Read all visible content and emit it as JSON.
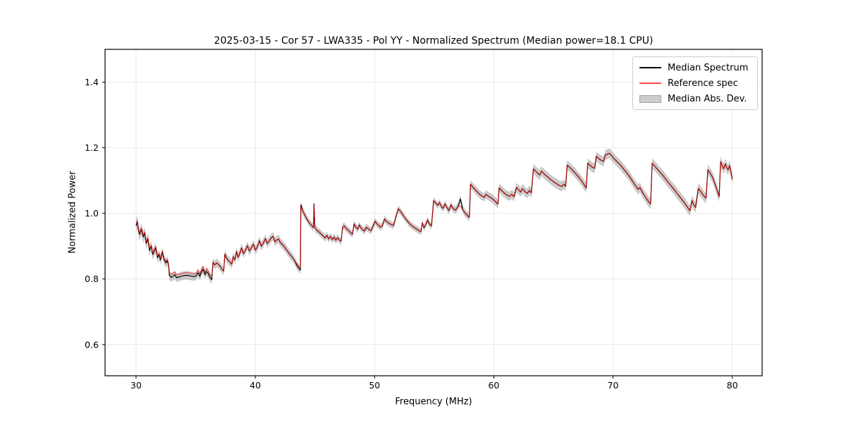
{
  "figure": {
    "background_color": "#ffffff",
    "title": "2025-03-15 - Cor 57 - LWA335 - Pol YY - Normalized Spectrum (Median power=18.1 CPU)"
  },
  "chart_data": {
    "type": "line",
    "title": "2025-03-15 - Cor 57 - LWA335 - Pol YY - Normalized Spectrum (Median power=18.1 CPU)",
    "xlabel": "Frequency (MHz)",
    "ylabel": "Normalized Power",
    "xlim": [
      27.4,
      82.5
    ],
    "ylim": [
      0.505,
      1.5
    ],
    "xticks": [
      30,
      40,
      50,
      60,
      70,
      80
    ],
    "yticks": [
      0.6,
      0.8,
      1.0,
      1.2,
      1.4
    ],
    "grid": true,
    "grid_color": "#e8e8e8",
    "spine_color": "#000000",
    "legend": {
      "position": "upper right",
      "entries": [
        {
          "label": "Median Spectrum",
          "type": "line",
          "color": "#000000"
        },
        {
          "label": "Reference spec",
          "type": "line",
          "color": "rgba(255,0,0,0.70)"
        },
        {
          "label": "Median Abs. Dev.",
          "type": "patch",
          "fill": "#cccccc",
          "edge": "#a5a5a5"
        }
      ]
    },
    "series_meta": [
      {
        "name": "Median Spectrum",
        "color": "#000000",
        "width": 1.2
      },
      {
        "name": "Reference spec",
        "color": "rgba(255,0,0,0.70)",
        "width": 1.1
      }
    ],
    "points_format": [
      "frequency_mhz",
      "median_spectrum",
      "reference_spec"
    ],
    "points": [
      [
        30.0,
        0.962,
        0.966
      ],
      [
        30.1,
        0.974,
        0.978
      ],
      [
        30.22,
        0.946,
        0.95
      ],
      [
        30.3,
        0.936,
        0.94
      ],
      [
        30.45,
        0.952,
        0.956
      ],
      [
        30.6,
        0.928,
        0.932
      ],
      [
        30.72,
        0.94,
        0.944
      ],
      [
        30.85,
        0.909,
        0.913
      ],
      [
        31.0,
        0.922,
        0.926
      ],
      [
        31.12,
        0.887,
        0.891
      ],
      [
        31.27,
        0.9,
        0.904
      ],
      [
        31.4,
        0.875,
        0.879
      ],
      [
        31.5,
        0.883,
        0.887
      ],
      [
        31.65,
        0.895,
        0.899
      ],
      [
        31.8,
        0.865,
        0.869
      ],
      [
        31.93,
        0.874,
        0.878
      ],
      [
        32.05,
        0.858,
        0.862
      ],
      [
        32.2,
        0.882,
        0.886
      ],
      [
        32.35,
        0.859,
        0.863
      ],
      [
        32.5,
        0.849,
        0.853
      ],
      [
        32.62,
        0.856,
        0.86
      ],
      [
        32.72,
        0.844,
        0.848
      ],
      [
        32.8,
        0.81,
        0.818
      ],
      [
        32.95,
        0.805,
        0.813
      ],
      [
        33.1,
        0.808,
        0.816
      ],
      [
        33.25,
        0.813,
        0.821
      ],
      [
        33.4,
        0.804,
        0.812
      ],
      [
        33.6,
        0.806,
        0.814
      ],
      [
        33.85,
        0.809,
        0.817
      ],
      [
        34.1,
        0.811,
        0.819
      ],
      [
        34.35,
        0.811,
        0.819
      ],
      [
        34.6,
        0.809,
        0.817
      ],
      [
        34.85,
        0.807,
        0.815
      ],
      [
        35.05,
        0.81,
        0.818
      ],
      [
        35.2,
        0.819,
        0.827
      ],
      [
        35.35,
        0.808,
        0.816
      ],
      [
        35.5,
        0.823,
        0.831
      ],
      [
        35.62,
        0.83,
        0.838
      ],
      [
        35.78,
        0.813,
        0.821
      ],
      [
        35.9,
        0.823,
        0.831
      ],
      [
        36.05,
        0.817,
        0.825
      ],
      [
        36.2,
        0.805,
        0.813
      ],
      [
        36.35,
        0.798,
        0.806
      ],
      [
        36.45,
        0.851,
        0.851
      ],
      [
        36.6,
        0.843,
        0.843
      ],
      [
        36.75,
        0.849,
        0.849
      ],
      [
        36.9,
        0.845,
        0.845
      ],
      [
        37.05,
        0.839,
        0.839
      ],
      [
        37.2,
        0.83,
        0.83
      ],
      [
        37.35,
        0.824,
        0.824
      ],
      [
        37.45,
        0.876,
        0.876
      ],
      [
        37.6,
        0.863,
        0.863
      ],
      [
        37.75,
        0.856,
        0.856
      ],
      [
        37.9,
        0.851,
        0.851
      ],
      [
        38.03,
        0.845,
        0.845
      ],
      [
        38.15,
        0.868,
        0.868
      ],
      [
        38.3,
        0.858,
        0.858
      ],
      [
        38.42,
        0.884,
        0.884
      ],
      [
        38.55,
        0.866,
        0.866
      ],
      [
        38.7,
        0.878,
        0.878
      ],
      [
        38.85,
        0.895,
        0.895
      ],
      [
        39.0,
        0.877,
        0.877
      ],
      [
        39.15,
        0.886,
        0.886
      ],
      [
        39.35,
        0.902,
        0.902
      ],
      [
        39.5,
        0.885,
        0.885
      ],
      [
        39.65,
        0.894,
        0.894
      ],
      [
        39.85,
        0.906,
        0.906
      ],
      [
        40.0,
        0.888,
        0.888
      ],
      [
        40.15,
        0.896,
        0.896
      ],
      [
        40.35,
        0.917,
        0.917
      ],
      [
        40.5,
        0.9,
        0.9
      ],
      [
        40.65,
        0.908,
        0.908
      ],
      [
        40.85,
        0.923,
        0.923
      ],
      [
        41.0,
        0.908,
        0.908
      ],
      [
        41.15,
        0.915,
        0.915
      ],
      [
        41.35,
        0.926,
        0.926
      ],
      [
        41.5,
        0.93,
        0.93
      ],
      [
        41.65,
        0.913,
        0.913
      ],
      [
        41.8,
        0.919,
        0.919
      ],
      [
        41.95,
        0.922,
        0.922
      ],
      [
        42.1,
        0.911,
        0.911
      ],
      [
        42.3,
        0.904,
        0.904
      ],
      [
        42.5,
        0.895,
        0.895
      ],
      [
        42.7,
        0.885,
        0.885
      ],
      [
        42.9,
        0.875,
        0.875
      ],
      [
        43.1,
        0.866,
        0.866
      ],
      [
        43.3,
        0.856,
        0.856
      ],
      [
        43.5,
        0.84,
        0.846
      ],
      [
        43.65,
        0.833,
        0.839
      ],
      [
        43.78,
        0.827,
        0.833
      ],
      [
        43.82,
        1.026,
        1.021
      ],
      [
        44.0,
        1.006,
        1.006
      ],
      [
        44.2,
        0.991,
        0.991
      ],
      [
        44.4,
        0.978,
        0.978
      ],
      [
        44.6,
        0.968,
        0.968
      ],
      [
        44.8,
        0.96,
        0.96
      ],
      [
        44.88,
        0.956,
        0.956
      ],
      [
        44.92,
        1.029,
        1.024
      ],
      [
        45.0,
        0.955,
        0.955
      ],
      [
        45.15,
        0.949,
        0.949
      ],
      [
        45.3,
        0.945,
        0.945
      ],
      [
        45.5,
        0.938,
        0.938
      ],
      [
        45.7,
        0.931,
        0.931
      ],
      [
        45.85,
        0.925,
        0.925
      ],
      [
        46.0,
        0.933,
        0.933
      ],
      [
        46.15,
        0.922,
        0.922
      ],
      [
        46.3,
        0.93,
        0.93
      ],
      [
        46.45,
        0.92,
        0.92
      ],
      [
        46.6,
        0.928,
        0.928
      ],
      [
        46.75,
        0.918,
        0.918
      ],
      [
        46.9,
        0.926,
        0.926
      ],
      [
        47.05,
        0.919,
        0.919
      ],
      [
        47.2,
        0.915,
        0.915
      ],
      [
        47.32,
        0.958,
        0.958
      ],
      [
        47.45,
        0.962,
        0.962
      ],
      [
        47.6,
        0.955,
        0.955
      ],
      [
        47.8,
        0.948,
        0.948
      ],
      [
        48.0,
        0.941,
        0.941
      ],
      [
        48.15,
        0.936,
        0.936
      ],
      [
        48.28,
        0.968,
        0.968
      ],
      [
        48.45,
        0.957,
        0.957
      ],
      [
        48.6,
        0.952,
        0.952
      ],
      [
        48.72,
        0.965,
        0.965
      ],
      [
        48.85,
        0.956,
        0.956
      ],
      [
        49.0,
        0.951,
        0.951
      ],
      [
        49.15,
        0.946,
        0.946
      ],
      [
        49.3,
        0.958,
        0.958
      ],
      [
        49.5,
        0.952,
        0.952
      ],
      [
        49.7,
        0.947,
        0.947
      ],
      [
        49.9,
        0.963,
        0.963
      ],
      [
        50.05,
        0.976,
        0.976
      ],
      [
        50.2,
        0.968,
        0.968
      ],
      [
        50.35,
        0.963,
        0.963
      ],
      [
        50.5,
        0.958,
        0.958
      ],
      [
        50.65,
        0.962,
        0.962
      ],
      [
        50.85,
        0.983,
        0.983
      ],
      [
        51.0,
        0.975,
        0.975
      ],
      [
        51.2,
        0.97,
        0.97
      ],
      [
        51.4,
        0.966,
        0.966
      ],
      [
        51.6,
        0.963,
        0.963
      ],
      [
        51.8,
        0.991,
        0.991
      ],
      [
        52.0,
        1.014,
        1.014
      ],
      [
        52.2,
        1.005,
        1.005
      ],
      [
        52.45,
        0.991,
        0.991
      ],
      [
        52.7,
        0.979,
        0.979
      ],
      [
        52.95,
        0.968,
        0.968
      ],
      [
        53.2,
        0.96,
        0.96
      ],
      [
        53.5,
        0.953,
        0.953
      ],
      [
        53.75,
        0.947,
        0.947
      ],
      [
        53.9,
        0.944,
        0.944
      ],
      [
        54.0,
        0.971,
        0.971
      ],
      [
        54.15,
        0.956,
        0.956
      ],
      [
        54.3,
        0.966,
        0.966
      ],
      [
        54.45,
        0.98,
        0.98
      ],
      [
        54.6,
        0.967,
        0.967
      ],
      [
        54.78,
        0.962,
        0.962
      ],
      [
        54.95,
        1.039,
        1.039
      ],
      [
        55.15,
        1.031,
        1.031
      ],
      [
        55.3,
        1.024,
        1.024
      ],
      [
        55.45,
        1.033,
        1.033
      ],
      [
        55.6,
        1.021,
        1.021
      ],
      [
        55.75,
        1.015,
        1.015
      ],
      [
        55.9,
        1.029,
        1.029
      ],
      [
        56.1,
        1.016,
        1.016
      ],
      [
        56.25,
        1.008,
        1.008
      ],
      [
        56.4,
        1.026,
        1.026
      ],
      [
        56.6,
        1.014,
        1.014
      ],
      [
        56.8,
        1.01,
        1.01
      ],
      [
        57.0,
        1.021,
        1.021
      ],
      [
        57.2,
        1.044,
        1.022
      ],
      [
        57.4,
        1.011,
        1.011
      ],
      [
        57.6,
        1.001,
        1.001
      ],
      [
        57.8,
        0.993,
        0.993
      ],
      [
        57.95,
        0.988,
        0.988
      ],
      [
        58.05,
        1.089,
        1.089
      ],
      [
        58.25,
        1.08,
        1.08
      ],
      [
        58.45,
        1.072,
        1.072
      ],
      [
        58.65,
        1.064,
        1.064
      ],
      [
        58.85,
        1.057,
        1.057
      ],
      [
        59.05,
        1.052,
        1.052
      ],
      [
        59.2,
        1.049,
        1.049
      ],
      [
        59.35,
        1.058,
        1.058
      ],
      [
        59.55,
        1.052,
        1.052
      ],
      [
        59.8,
        1.047,
        1.047
      ],
      [
        60.0,
        1.041,
        1.041
      ],
      [
        60.2,
        1.034,
        1.034
      ],
      [
        60.35,
        1.028,
        1.028
      ],
      [
        60.45,
        1.078,
        1.078
      ],
      [
        60.65,
        1.07,
        1.07
      ],
      [
        60.85,
        1.063,
        1.063
      ],
      [
        61.05,
        1.057,
        1.057
      ],
      [
        61.3,
        1.052,
        1.052
      ],
      [
        61.5,
        1.058,
        1.058
      ],
      [
        61.7,
        1.051,
        1.051
      ],
      [
        61.9,
        1.079,
        1.079
      ],
      [
        62.1,
        1.071,
        1.071
      ],
      [
        62.25,
        1.065,
        1.065
      ],
      [
        62.4,
        1.075,
        1.075
      ],
      [
        62.6,
        1.067,
        1.067
      ],
      [
        62.8,
        1.061,
        1.061
      ],
      [
        63.0,
        1.07,
        1.07
      ],
      [
        63.15,
        1.062,
        1.062
      ],
      [
        63.32,
        1.136,
        1.136
      ],
      [
        63.5,
        1.129,
        1.129
      ],
      [
        63.7,
        1.122,
        1.122
      ],
      [
        63.85,
        1.117,
        1.117
      ],
      [
        64.0,
        1.129,
        1.129
      ],
      [
        64.2,
        1.121,
        1.121
      ],
      [
        64.45,
        1.113,
        1.113
      ],
      [
        64.7,
        1.105,
        1.105
      ],
      [
        64.95,
        1.098,
        1.098
      ],
      [
        65.2,
        1.092,
        1.092
      ],
      [
        65.45,
        1.086,
        1.086
      ],
      [
        65.7,
        1.082,
        1.082
      ],
      [
        65.88,
        1.089,
        1.089
      ],
      [
        66.03,
        1.082,
        1.082
      ],
      [
        66.15,
        1.147,
        1.147
      ],
      [
        66.4,
        1.139,
        1.139
      ],
      [
        66.65,
        1.13,
        1.13
      ],
      [
        66.9,
        1.12,
        1.12
      ],
      [
        67.15,
        1.109,
        1.109
      ],
      [
        67.4,
        1.097,
        1.097
      ],
      [
        67.6,
        1.086,
        1.086
      ],
      [
        67.75,
        1.077,
        1.077
      ],
      [
        67.88,
        1.153,
        1.153
      ],
      [
        68.05,
        1.147,
        1.147
      ],
      [
        68.25,
        1.141,
        1.141
      ],
      [
        68.45,
        1.137,
        1.137
      ],
      [
        68.6,
        1.174,
        1.174
      ],
      [
        68.8,
        1.167,
        1.167
      ],
      [
        69.0,
        1.162,
        1.162
      ],
      [
        69.2,
        1.158,
        1.158
      ],
      [
        69.35,
        1.178,
        1.178
      ],
      [
        69.55,
        1.181,
        1.181
      ],
      [
        69.7,
        1.183,
        1.183
      ],
      [
        69.9,
        1.175,
        1.175
      ],
      [
        70.1,
        1.166,
        1.166
      ],
      [
        70.35,
        1.157,
        1.157
      ],
      [
        70.6,
        1.148,
        1.148
      ],
      [
        70.85,
        1.137,
        1.137
      ],
      [
        71.1,
        1.126,
        1.126
      ],
      [
        71.35,
        1.114,
        1.114
      ],
      [
        71.6,
        1.1,
        1.1
      ],
      [
        71.85,
        1.086,
        1.086
      ],
      [
        72.1,
        1.073,
        1.073
      ],
      [
        72.25,
        1.079,
        1.079
      ],
      [
        72.5,
        1.062,
        1.062
      ],
      [
        72.75,
        1.048,
        1.048
      ],
      [
        73.0,
        1.035,
        1.035
      ],
      [
        73.15,
        1.028,
        1.028
      ],
      [
        73.28,
        1.153,
        1.153
      ],
      [
        73.55,
        1.142,
        1.142
      ],
      [
        73.85,
        1.129,
        1.129
      ],
      [
        74.15,
        1.117,
        1.117
      ],
      [
        74.45,
        1.103,
        1.103
      ],
      [
        74.75,
        1.089,
        1.089
      ],
      [
        75.05,
        1.076,
        1.076
      ],
      [
        75.35,
        1.062,
        1.062
      ],
      [
        75.65,
        1.048,
        1.048
      ],
      [
        75.95,
        1.034,
        1.034
      ],
      [
        76.2,
        1.021,
        1.021
      ],
      [
        76.45,
        1.008,
        1.008
      ],
      [
        76.62,
        1.039,
        1.039
      ],
      [
        76.78,
        1.026,
        1.026
      ],
      [
        76.92,
        1.018,
        1.018
      ],
      [
        77.15,
        1.076,
        1.076
      ],
      [
        77.4,
        1.064,
        1.064
      ],
      [
        77.6,
        1.054,
        1.054
      ],
      [
        77.8,
        1.046,
        1.046
      ],
      [
        77.95,
        1.133,
        1.133
      ],
      [
        78.15,
        1.122,
        1.122
      ],
      [
        78.35,
        1.11,
        1.11
      ],
      [
        78.55,
        1.09,
        1.09
      ],
      [
        78.75,
        1.068,
        1.068
      ],
      [
        78.9,
        1.051,
        1.051
      ],
      [
        79.02,
        1.158,
        1.158
      ],
      [
        79.15,
        1.146,
        1.146
      ],
      [
        79.28,
        1.136,
        1.136
      ],
      [
        79.42,
        1.151,
        1.151
      ],
      [
        79.55,
        1.138,
        1.138
      ],
      [
        79.65,
        1.133,
        1.133
      ],
      [
        79.78,
        1.146,
        1.146
      ],
      [
        80.0,
        1.104,
        1.104
      ]
    ],
    "mad_band": {
      "label": "Median Abs. Dev.",
      "around": "median_spectrum",
      "fill": "rgba(128,128,128,0.42)",
      "halfwidth_breakpoints": [
        [
          30.0,
          0.019
        ],
        [
          33.0,
          0.013
        ],
        [
          43.0,
          0.013
        ],
        [
          44.5,
          0.011
        ],
        [
          55.0,
          0.01
        ],
        [
          58.0,
          0.012
        ],
        [
          63.0,
          0.015
        ],
        [
          70.0,
          0.015
        ],
        [
          76.0,
          0.016
        ],
        [
          80.0,
          0.016
        ]
      ]
    }
  }
}
